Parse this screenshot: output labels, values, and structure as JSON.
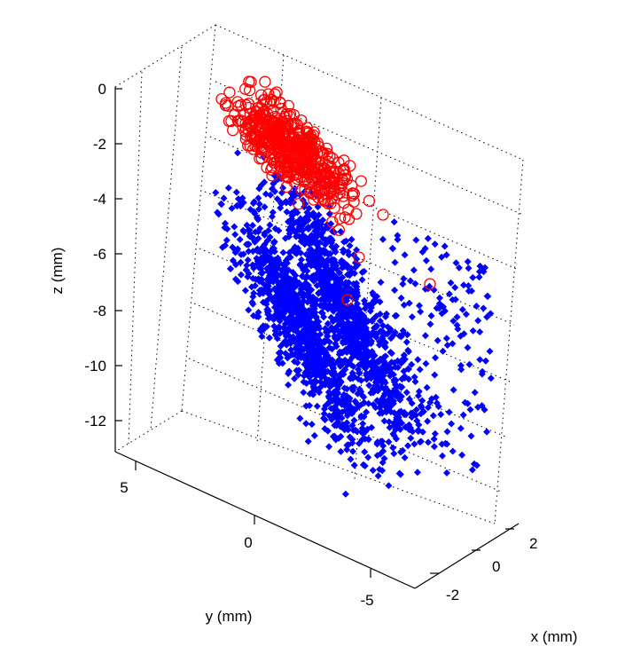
{
  "chart_data": {
    "type": "scatter",
    "title": "",
    "xlabel": "x (mm)",
    "ylabel": "y (mm)",
    "zlabel": "z (mm)",
    "xlim": [
      -3,
      3
    ],
    "ylim": [
      -7,
      7
    ],
    "zlim": [
      -13,
      0
    ],
    "x_ticks": [
      "-2",
      "0",
      "2"
    ],
    "y_ticks": [
      "5",
      "0",
      "-5"
    ],
    "z_ticks": [
      "0",
      "-2",
      "-4",
      "-6",
      "-8",
      "-10",
      "-12"
    ],
    "grid": true,
    "legend": "none",
    "series": [
      {
        "marker": "filled-diamond",
        "color": "#0000ff"
      },
      {
        "marker": "open-circle",
        "color": "#ff0000"
      }
    ]
  }
}
